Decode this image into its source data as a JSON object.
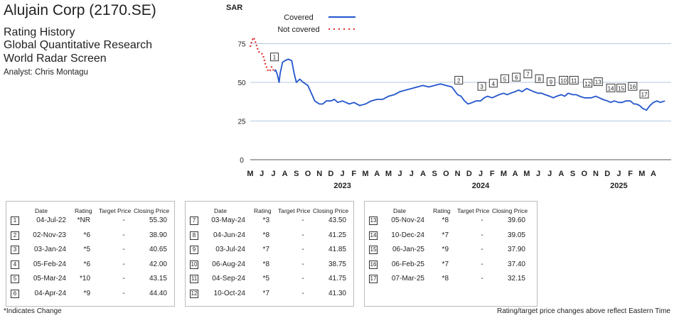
{
  "header": {
    "company": "Alujain Corp (2170.SE)",
    "line1": "Rating History",
    "line2": "Global Quantitative Research",
    "line3": "World Radar Screen",
    "analyst": "Analyst: Chris Montagu"
  },
  "footer": {
    "left": "*Indicates Change",
    "right": "Rating/target price changes above reflect Eastern Time"
  },
  "colors": {
    "covered": "#2255cc",
    "not_covered": "#e03030"
  },
  "chart_data": {
    "type": "line",
    "ylabel": "SAR",
    "ylim": [
      0,
      88
    ],
    "yticks": [
      0,
      25,
      50,
      75
    ],
    "months": [
      "M",
      "J",
      "J",
      "A",
      "S",
      "O",
      "N",
      "D",
      "J",
      "F",
      "M",
      "A",
      "M",
      "J",
      "J",
      "A",
      "S",
      "O",
      "N",
      "D",
      "J",
      "F",
      "M",
      "A",
      "M",
      "J",
      "J",
      "A",
      "S",
      "O",
      "N",
      "D",
      "J",
      "F",
      "M",
      "A"
    ],
    "years": [
      {
        "label": "2023",
        "month_index": 8
      },
      {
        "label": "2024",
        "month_index": 20
      },
      {
        "label": "2025",
        "month_index": 32
      }
    ],
    "legend": [
      {
        "name": "Covered",
        "style": "solid"
      },
      {
        "name": "Not covered",
        "style": "dotted"
      }
    ],
    "series": [
      {
        "name": "Not covered",
        "x": [
          0,
          0.15,
          0.3,
          0.5,
          0.7,
          0.9,
          1.1,
          1.3,
          1.5,
          1.7,
          1.85,
          2.0,
          2.05,
          2.1
        ],
        "y": [
          73,
          77,
          79,
          75,
          70,
          69,
          68,
          62,
          58,
          57,
          60,
          58,
          57,
          57
        ]
      },
      {
        "name": "Covered",
        "x": [
          2.1,
          2.2,
          2.35,
          2.5,
          2.6,
          2.8,
          3.0,
          3.3,
          3.6,
          3.8,
          4.0,
          4.3,
          4.6,
          5.0,
          5.3,
          5.6,
          6.0,
          6.3,
          6.6,
          7.0,
          7.3,
          7.6,
          8.0,
          8.3,
          8.6,
          9.0,
          9.5,
          10.0,
          10.5,
          11.0,
          11.5,
          12.0,
          12.5,
          13.0,
          13.5,
          14.0,
          14.5,
          15.0,
          15.5,
          16.0,
          16.5,
          17.0,
          17.5,
          17.8,
          18.0,
          18.3,
          18.6,
          18.9,
          19.3,
          19.6,
          20.0,
          20.3,
          20.6,
          21.0,
          21.3,
          21.6,
          22.0,
          22.3,
          22.6,
          23.0,
          23.3,
          23.6,
          24.0,
          24.3,
          24.6,
          25.0,
          25.3,
          25.6,
          26.0,
          26.3,
          26.6,
          27.0,
          27.3,
          27.6,
          28.0,
          28.3,
          28.6,
          29.0,
          29.3,
          29.6,
          30.0,
          30.3,
          30.6,
          31.0,
          31.3,
          31.6,
          32.0,
          32.3,
          32.6,
          33.0,
          33.3,
          33.5,
          33.8,
          34.1,
          34.4,
          34.7,
          35.0,
          35.3,
          35.6,
          36.0
        ],
        "y": [
          57,
          58,
          55,
          50,
          56,
          63,
          64,
          65,
          64,
          56,
          50,
          52,
          50,
          48,
          43,
          38,
          36,
          36,
          38,
          38,
          39,
          37,
          38,
          37,
          36,
          37,
          35,
          36,
          38,
          39,
          39,
          41,
          42,
          44,
          45,
          46,
          47,
          48,
          47,
          48,
          49,
          48,
          47,
          44,
          42,
          41,
          38,
          36,
          37,
          38,
          38,
          40,
          41,
          40,
          41,
          42,
          43,
          42,
          43,
          44,
          45,
          44,
          46,
          45,
          44,
          43,
          43,
          42,
          41,
          40,
          41,
          42,
          41,
          43,
          42,
          42,
          41,
          40,
          40,
          40,
          41,
          40,
          39,
          38,
          37,
          38,
          37,
          37,
          38,
          38,
          36,
          36,
          35,
          33,
          32,
          35,
          37,
          38,
          37,
          38
        ]
      }
    ],
    "markers": [
      {
        "label": "1",
        "x": 2.1
      },
      {
        "label": "2",
        "x": 18.1
      },
      {
        "label": "3",
        "x": 20.1
      },
      {
        "label": "4",
        "x": 21.1
      },
      {
        "label": "5",
        "x": 22.1
      },
      {
        "label": "6",
        "x": 23.1
      },
      {
        "label": "7",
        "x": 24.1
      },
      {
        "label": "8",
        "x": 25.1
      },
      {
        "label": "9",
        "x": 26.1
      },
      {
        "label": "10",
        "x": 27.2
      },
      {
        "label": "11",
        "x": 28.1
      },
      {
        "label": "12",
        "x": 29.3
      },
      {
        "label": "13",
        "x": 30.2
      },
      {
        "label": "14",
        "x": 31.3
      },
      {
        "label": "15",
        "x": 32.2
      },
      {
        "label": "16",
        "x": 33.2
      },
      {
        "label": "17",
        "x": 34.2
      }
    ]
  },
  "table": {
    "headers": {
      "date": "Date",
      "rating": "Rating",
      "target": "Target Price",
      "closing": "Closing Price"
    },
    "groups": [
      [
        {
          "n": "1",
          "date": "04-Jul-22",
          "rating": "*NR",
          "target": "-",
          "closing": "55.30"
        },
        {
          "n": "2",
          "date": "02-Nov-23",
          "rating": "*6",
          "target": "-",
          "closing": "38.90"
        },
        {
          "n": "3",
          "date": "03-Jan-24",
          "rating": "*5",
          "target": "-",
          "closing": "40.65"
        },
        {
          "n": "4",
          "date": "05-Feb-24",
          "rating": "*6",
          "target": "-",
          "closing": "42.00"
        },
        {
          "n": "5",
          "date": "05-Mar-24",
          "rating": "*10",
          "target": "-",
          "closing": "43.15"
        },
        {
          "n": "6",
          "date": "04-Apr-24",
          "rating": "*9",
          "target": "-",
          "closing": "44.40"
        }
      ],
      [
        {
          "n": "7",
          "date": "03-May-24",
          "rating": "*3",
          "target": "-",
          "closing": "43.50"
        },
        {
          "n": "8",
          "date": "04-Jun-24",
          "rating": "*8",
          "target": "-",
          "closing": "41.25"
        },
        {
          "n": "9",
          "date": "03-Jul-24",
          "rating": "*7",
          "target": "-",
          "closing": "41.85"
        },
        {
          "n": "10",
          "date": "06-Aug-24",
          "rating": "*8",
          "target": "-",
          "closing": "38.75"
        },
        {
          "n": "11",
          "date": "04-Sep-24",
          "rating": "*5",
          "target": "-",
          "closing": "41.75"
        },
        {
          "n": "12",
          "date": "10-Oct-24",
          "rating": "*7",
          "target": "-",
          "closing": "41.30"
        }
      ],
      [
        {
          "n": "13",
          "date": "05-Nov-24",
          "rating": "*8",
          "target": "-",
          "closing": "39.60"
        },
        {
          "n": "14",
          "date": "10-Dec-24",
          "rating": "*7",
          "target": "-",
          "closing": "39.05"
        },
        {
          "n": "15",
          "date": "06-Jan-25",
          "rating": "*9",
          "target": "-",
          "closing": "37.90"
        },
        {
          "n": "16",
          "date": "06-Feb-25",
          "rating": "*7",
          "target": "-",
          "closing": "37.40"
        },
        {
          "n": "17",
          "date": "07-Mar-25",
          "rating": "*8",
          "target": "-",
          "closing": "32.15"
        }
      ]
    ]
  }
}
